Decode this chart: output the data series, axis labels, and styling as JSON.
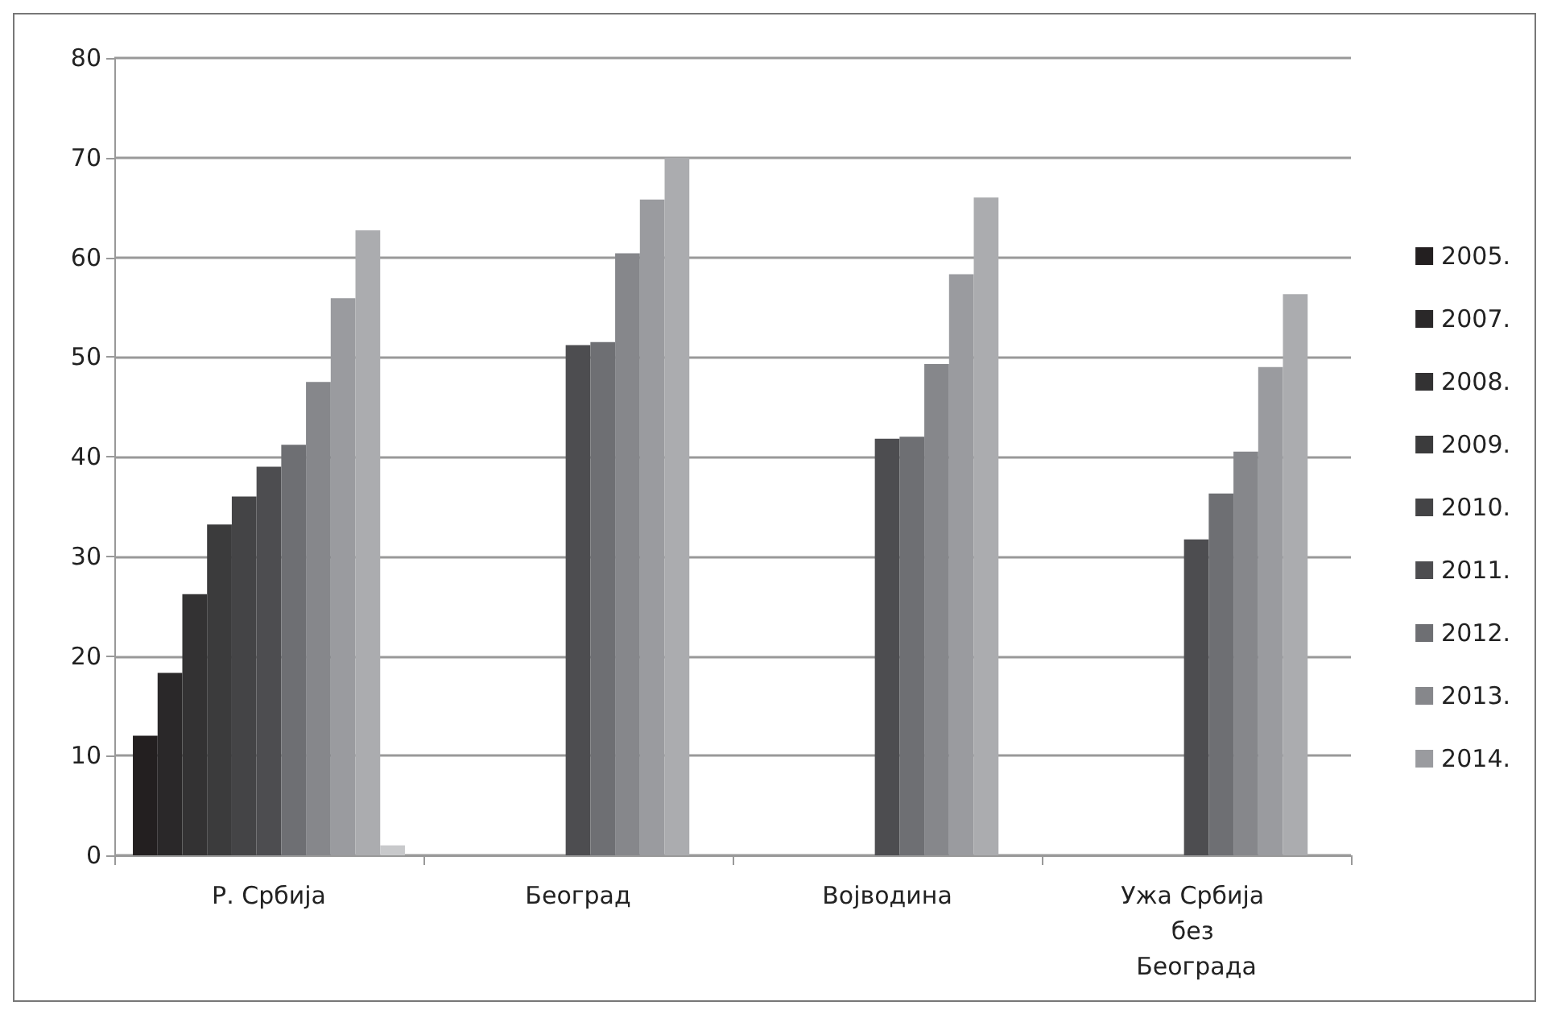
{
  "chart_data": {
    "type": "bar",
    "categories": [
      "Р. Србија",
      "Београд",
      "Војводина",
      "Ужа Србија без Београда"
    ],
    "series": [
      {
        "name": "2005.",
        "color": "#231f20",
        "values": [
          12,
          null,
          null,
          null
        ]
      },
      {
        "name": "2007.",
        "color": "#2a2829",
        "values": [
          18.3,
          null,
          null,
          null
        ]
      },
      {
        "name": "2008.",
        "color": "#333233",
        "values": [
          26.2,
          null,
          null,
          null
        ]
      },
      {
        "name": "2009.",
        "color": "#3b3b3c",
        "values": [
          33.2,
          null,
          null,
          null
        ]
      },
      {
        "name": "2010.",
        "color": "#444446",
        "values": [
          36,
          null,
          null,
          null
        ]
      },
      {
        "name": "2011.",
        "color": "#4d4d50",
        "values": [
          39,
          51.2,
          41.8,
          31.7
        ]
      },
      {
        "name": "2012.",
        "color": "#6e6f73",
        "values": [
          41.2,
          51.5,
          42,
          36.3
        ]
      },
      {
        "name": "2013.",
        "color": "#86878b",
        "values": [
          47.5,
          60.4,
          49.3,
          40.5
        ]
      },
      {
        "name": "2014.",
        "color": "#9a9b9f",
        "values": [
          55.9,
          65.8,
          58.3,
          49
        ]
      },
      {
        "color": "#abacaf",
        "values": [
          62.7,
          70,
          66,
          56.3
        ]
      },
      {
        "color": "#c8c9cb",
        "values": [
          1,
          null,
          null,
          null
        ]
      }
    ],
    "ylim": [
      0,
      80
    ],
    "yticks": [
      0,
      10,
      20,
      30,
      40,
      50,
      60,
      70,
      80
    ],
    "grid": "y",
    "legend": "right"
  }
}
